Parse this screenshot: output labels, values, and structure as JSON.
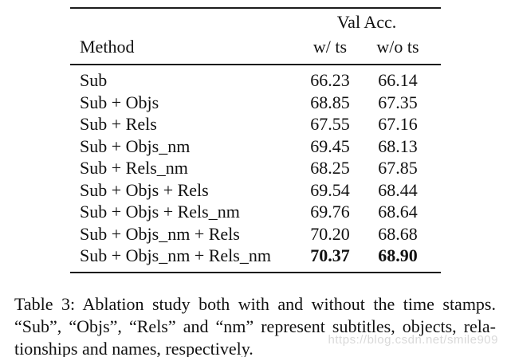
{
  "table": {
    "header": {
      "group_label": "Val Acc.",
      "method_label": "Method",
      "col1_label": "w/ ts",
      "col2_label": "w/o ts"
    },
    "rows": [
      {
        "method": "Sub",
        "w_ts": "66.23",
        "wo_ts": "66.14",
        "bold": false
      },
      {
        "method": "Sub + Objs",
        "w_ts": "68.85",
        "wo_ts": "67.35",
        "bold": false
      },
      {
        "method": "Sub + Rels",
        "w_ts": "67.55",
        "wo_ts": "67.16",
        "bold": false
      },
      {
        "method": "Sub + Objs_nm",
        "w_ts": "69.45",
        "wo_ts": "68.13",
        "bold": false
      },
      {
        "method": "Sub + Rels_nm",
        "w_ts": "68.25",
        "wo_ts": "67.85",
        "bold": false
      },
      {
        "method": "Sub + Objs + Rels",
        "w_ts": "69.54",
        "wo_ts": "68.44",
        "bold": false
      },
      {
        "method": "Sub + Objs + Rels_nm",
        "w_ts": "69.76",
        "wo_ts": "68.64",
        "bold": false
      },
      {
        "method": "Sub + Objs_nm + Rels",
        "w_ts": "70.20",
        "wo_ts": "68.68",
        "bold": false
      },
      {
        "method": "Sub + Objs_nm + Rels_nm",
        "w_ts": "70.37",
        "wo_ts": "68.90",
        "bold": true
      }
    ]
  },
  "caption": {
    "lines": [
      "Table 3: Ablation study both with and without the time stamps.",
      "“Sub”, “Objs”, “Rels” and “nm” represent subtitles, objects, rela-",
      "tionships and names, respectively."
    ]
  },
  "watermark": {
    "text": "https://blog.csdn.net/smile909"
  },
  "colors": {
    "background": "#ffffff",
    "text": "#111111",
    "rule": "#1c1c1c",
    "watermark": "#d9d9d9"
  }
}
